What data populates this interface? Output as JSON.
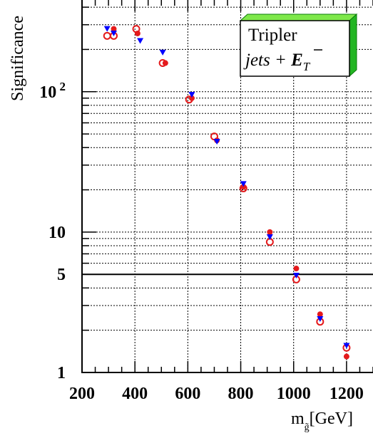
{
  "chart_data": {
    "type": "scatter",
    "title": "",
    "ylabel": "Significance",
    "xlabel_main": "m",
    "xlabel_sub": "g̃",
    "xlabel_unit": "[GeV]",
    "xlim": [
      200,
      1300
    ],
    "ylim": [
      1,
      450
    ],
    "y_scale": "log",
    "x_ticks": [
      200,
      400,
      600,
      800,
      1000,
      1200
    ],
    "x_tick_labels": [
      "200",
      "400",
      "600",
      "800",
      "1000",
      "1200"
    ],
    "y_major_ticks": [
      1,
      10,
      100
    ],
    "y_tick_labels": [
      {
        "value": 1,
        "base": "1",
        "exp": ""
      },
      {
        "value": 5,
        "base": "5",
        "exp": ""
      },
      {
        "value": 10,
        "base": "10",
        "exp": ""
      },
      {
        "value": 100,
        "base": "10",
        "exp": "2"
      }
    ],
    "reference_line": {
      "y": 5
    },
    "annotation": {
      "line1": "Tripler",
      "line2_italic": "jets + ",
      "line2_symbol": "E",
      "line2_sub": "T"
    },
    "series": [
      {
        "marker": "filled-circle",
        "color": "#e41a1c",
        "points": [
          [
            320,
            280
          ],
          [
            410,
            260
          ],
          [
            515,
            160
          ],
          [
            615,
            90
          ],
          [
            710,
            45
          ],
          [
            810,
            21
          ],
          [
            910,
            10
          ],
          [
            1010,
            5.5
          ],
          [
            1100,
            2.6
          ],
          [
            1200,
            1.3
          ]
        ]
      },
      {
        "marker": "open-circle",
        "color": "#e41a1c",
        "points": [
          [
            295,
            250
          ],
          [
            320,
            250
          ],
          [
            405,
            280
          ],
          [
            505,
            160
          ],
          [
            605,
            88
          ],
          [
            700,
            48
          ],
          [
            810,
            20.5
          ],
          [
            910,
            8.5
          ],
          [
            1010,
            4.6
          ],
          [
            1100,
            2.3
          ],
          [
            1200,
            1.5
          ]
        ]
      },
      {
        "marker": "triangle-down",
        "color": "#0000ff",
        "points": [
          [
            295,
            280
          ],
          [
            320,
            260
          ],
          [
            420,
            230
          ],
          [
            505,
            190
          ],
          [
            615,
            95
          ],
          [
            710,
            44
          ],
          [
            810,
            22
          ],
          [
            910,
            9.2
          ],
          [
            1010,
            4.9
          ],
          [
            1100,
            2.4
          ],
          [
            1200,
            1.55
          ]
        ]
      }
    ]
  }
}
